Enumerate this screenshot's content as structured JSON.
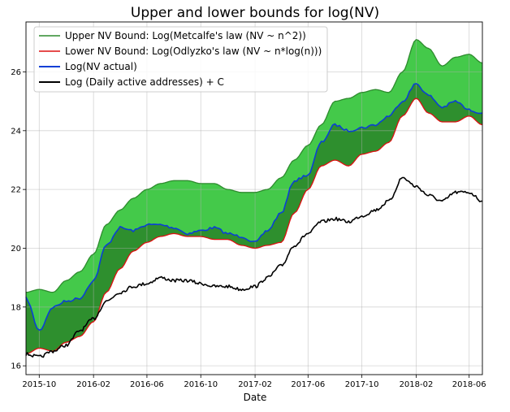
{
  "chart_data": {
    "type": "area",
    "title": "Upper and lower bounds for log(NV)",
    "xlabel": "Date",
    "ylabel": "",
    "x_ticks": [
      "2015-10",
      "2016-02",
      "2016-06",
      "2016-10",
      "2017-02",
      "2017-06",
      "2017-10",
      "2018-02",
      "2018-06"
    ],
    "y_ticks": [
      "16",
      "18",
      "20",
      "22",
      "24",
      "26"
    ],
    "xlim": [
      "2015-09-01",
      "2018-07-01"
    ],
    "ylim": [
      15.7,
      27.7
    ],
    "grid": true,
    "legend_position": "top-left",
    "x": [
      "2015-09-01",
      "2015-10-01",
      "2015-11-01",
      "2015-12-01",
      "2016-01-01",
      "2016-02-01",
      "2016-03-01",
      "2016-04-01",
      "2016-05-01",
      "2016-06-01",
      "2016-07-01",
      "2016-08-01",
      "2016-09-01",
      "2016-10-01",
      "2016-11-01",
      "2016-12-01",
      "2017-01-01",
      "2017-02-01",
      "2017-03-01",
      "2017-04-01",
      "2017-05-01",
      "2017-06-01",
      "2017-07-01",
      "2017-08-01",
      "2017-09-01",
      "2017-10-01",
      "2017-11-01",
      "2017-12-01",
      "2018-01-01",
      "2018-02-01",
      "2018-03-01",
      "2018-04-01",
      "2018-05-01",
      "2018-06-01",
      "2018-07-01"
    ],
    "series": [
      {
        "name": "Upper NV Bound: Log(Metcalfe's law (NV ~ n^2))",
        "color": "#2e8b2e",
        "values": [
          18.5,
          18.6,
          18.5,
          18.9,
          19.2,
          19.8,
          20.8,
          21.3,
          21.7,
          22.0,
          22.2,
          22.3,
          22.3,
          22.2,
          22.2,
          22.0,
          21.9,
          21.9,
          22.0,
          22.4,
          23.0,
          23.5,
          24.2,
          25.0,
          25.1,
          25.3,
          25.4,
          25.3,
          26.0,
          27.1,
          26.8,
          26.2,
          26.5,
          26.6,
          26.3
        ]
      },
      {
        "name": "Lower NV Bound: Log(Odlyzko's law (NV ~ n*log(n)))",
        "color": "#dd1111",
        "values": [
          16.4,
          16.6,
          16.5,
          16.8,
          17.0,
          17.5,
          18.5,
          19.3,
          19.9,
          20.2,
          20.4,
          20.5,
          20.4,
          20.4,
          20.3,
          20.3,
          20.1,
          20.0,
          20.1,
          20.2,
          21.2,
          22.0,
          22.8,
          23.0,
          22.8,
          23.2,
          23.3,
          23.6,
          24.5,
          25.1,
          24.6,
          24.3,
          24.3,
          24.5,
          24.2
        ]
      },
      {
        "name": "Log(NV actual)",
        "color": "#0a3fd6",
        "values": [
          18.3,
          17.2,
          18.0,
          18.2,
          18.3,
          18.9,
          20.1,
          20.7,
          20.6,
          20.8,
          20.8,
          20.7,
          20.5,
          20.6,
          20.7,
          20.5,
          20.4,
          20.2,
          20.6,
          21.2,
          22.3,
          22.5,
          23.6,
          24.2,
          24.0,
          24.1,
          24.2,
          24.5,
          25.0,
          25.6,
          25.2,
          24.8,
          25.0,
          24.7,
          24.6
        ]
      },
      {
        "name": "Log (Daily active addresses) + C",
        "color": "#000000",
        "values": [
          16.4,
          16.3,
          16.5,
          16.7,
          17.2,
          17.6,
          18.2,
          18.5,
          18.7,
          18.8,
          19.0,
          18.9,
          18.9,
          18.8,
          18.7,
          18.7,
          18.6,
          18.7,
          19.0,
          19.4,
          20.1,
          20.5,
          20.9,
          21.0,
          20.9,
          21.1,
          21.3,
          21.6,
          22.4,
          22.1,
          21.8,
          21.6,
          21.9,
          21.9,
          21.6
        ]
      }
    ],
    "fills": [
      {
        "between": [
          "Upper",
          "Lower"
        ],
        "color": "#44c94a"
      },
      {
        "between": [
          "Actual",
          "Lower"
        ],
        "color": "#2e8f2e"
      }
    ]
  }
}
